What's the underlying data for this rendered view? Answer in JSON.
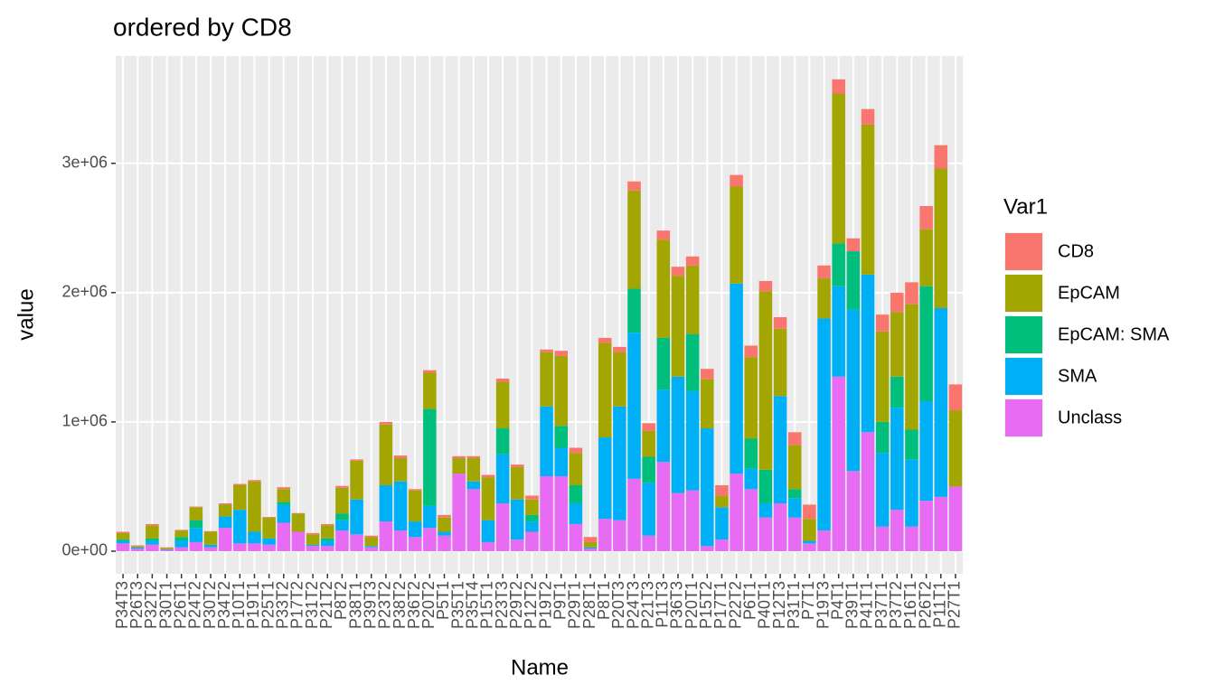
{
  "chart_data": {
    "type": "stacked_bar",
    "title": "ordered by CD8",
    "x_label": "Name",
    "y_label": "value",
    "legend_title": "Var1",
    "legend_position": "right",
    "categories": [
      "P34T3",
      "P26T3",
      "P32T2",
      "P30T1",
      "P26T1",
      "P24T2",
      "P30T2",
      "P34T2",
      "P10T1",
      "P19T1",
      "P25T1",
      "P33T2",
      "P17T2",
      "P31T2",
      "P21T2",
      "P8T2",
      "P38T1",
      "P39T3",
      "P23T2",
      "P38T2",
      "P36T2",
      "P20T2",
      "P5T1",
      "P35T1",
      "P35T4",
      "P15T1",
      "P23T3",
      "P29T2",
      "P12T2",
      "P19T2",
      "P9T1",
      "P29T1",
      "P28T1",
      "P8T1",
      "P20T3",
      "P24T3",
      "P21T3",
      "P11T3",
      "P36T3",
      "P20T1",
      "P15T2",
      "P17T1",
      "P22T2",
      "P6T1",
      "P40T1",
      "P12T3",
      "P31T1",
      "P7T1",
      "P19T3",
      "P4T1",
      "P39T1",
      "P41T1",
      "P37T1",
      "P37T2",
      "P16T1",
      "P26T2",
      "P11T1",
      "P27T1"
    ],
    "series": [
      {
        "name": "CD8",
        "color": "#F8766D",
        "values": [
          10000,
          5000,
          10000,
          5000,
          5000,
          5000,
          5000,
          10000,
          10000,
          10000,
          5000,
          15000,
          5000,
          10000,
          10000,
          15000,
          10000,
          10000,
          20000,
          20000,
          10000,
          20000,
          20000,
          15000,
          15000,
          20000,
          25000,
          20000,
          30000,
          20000,
          40000,
          40000,
          40000,
          40000,
          40000,
          70000,
          60000,
          70000,
          70000,
          70000,
          80000,
          80000,
          90000,
          90000,
          80000,
          90000,
          100000,
          110000,
          100000,
          110000,
          100000,
          120000,
          130000,
          150000,
          170000,
          180000,
          180000,
          200000
        ]
      },
      {
        "name": "EpCAM",
        "color": "#A3A500",
        "values": [
          50000,
          10000,
          100000,
          10000,
          50000,
          100000,
          100000,
          90000,
          190000,
          390000,
          160000,
          100000,
          140000,
          80000,
          100000,
          200000,
          300000,
          70000,
          470000,
          180000,
          240000,
          280000,
          110000,
          120000,
          180000,
          330000,
          360000,
          250000,
          120000,
          420000,
          540000,
          250000,
          40000,
          730000,
          420000,
          760000,
          200000,
          760000,
          780000,
          530000,
          380000,
          90000,
          750000,
          630000,
          1380000,
          520000,
          340000,
          170000,
          310000,
          1160000,
          0,
          1160000,
          700000,
          500000,
          970000,
          440000,
          1080000,
          590000
        ]
      },
      {
        "name": "EpCAM: SMA",
        "color": "#00BF7D",
        "values": [
          10000,
          0,
          20000,
          0,
          30000,
          60000,
          0,
          0,
          0,
          0,
          0,
          20000,
          0,
          0,
          20000,
          50000,
          0,
          0,
          0,
          0,
          0,
          750000,
          0,
          0,
          0,
          0,
          200000,
          0,
          50000,
          0,
          170000,
          140000,
          0,
          0,
          0,
          340000,
          200000,
          400000,
          0,
          440000,
          0,
          0,
          0,
          230000,
          260000,
          0,
          70000,
          0,
          0,
          330000,
          450000,
          0,
          240000,
          240000,
          230000,
          890000,
          0,
          0
        ]
      },
      {
        "name": "SMA",
        "color": "#00B0F6",
        "values": [
          20000,
          10000,
          30000,
          5000,
          50000,
          110000,
          20000,
          90000,
          260000,
          90000,
          50000,
          140000,
          0,
          10000,
          40000,
          80000,
          270000,
          10000,
          280000,
          380000,
          120000,
          170000,
          30000,
          0,
          60000,
          170000,
          380000,
          310000,
          80000,
          540000,
          220000,
          160000,
          10000,
          630000,
          880000,
          1130000,
          410000,
          560000,
          900000,
          770000,
          910000,
          250000,
          1470000,
          160000,
          110000,
          830000,
          150000,
          20000,
          1640000,
          700000,
          1250000,
          1220000,
          570000,
          790000,
          520000,
          770000,
          1460000,
          0
        ]
      },
      {
        "name": "Unclass",
        "color": "#E76BF3",
        "values": [
          60000,
          20000,
          50000,
          10000,
          30000,
          70000,
          30000,
          180000,
          60000,
          60000,
          50000,
          220000,
          150000,
          40000,
          40000,
          160000,
          130000,
          30000,
          230000,
          160000,
          110000,
          180000,
          120000,
          600000,
          480000,
          70000,
          370000,
          90000,
          150000,
          580000,
          580000,
          210000,
          20000,
          250000,
          240000,
          560000,
          120000,
          690000,
          450000,
          470000,
          40000,
          90000,
          600000,
          480000,
          260000,
          370000,
          260000,
          60000,
          160000,
          1350000,
          620000,
          920000,
          190000,
          320000,
          190000,
          390000,
          420000,
          500000
        ]
      }
    ],
    "ylim": [
      -175000,
      3830000
    ],
    "yticks": [
      {
        "value": 0,
        "label": "0e+00"
      },
      {
        "value": 1000000,
        "label": "1e+06"
      },
      {
        "value": 2000000,
        "label": "2e+06"
      },
      {
        "value": 3000000,
        "label": "3e+06"
      }
    ],
    "grid": true
  }
}
